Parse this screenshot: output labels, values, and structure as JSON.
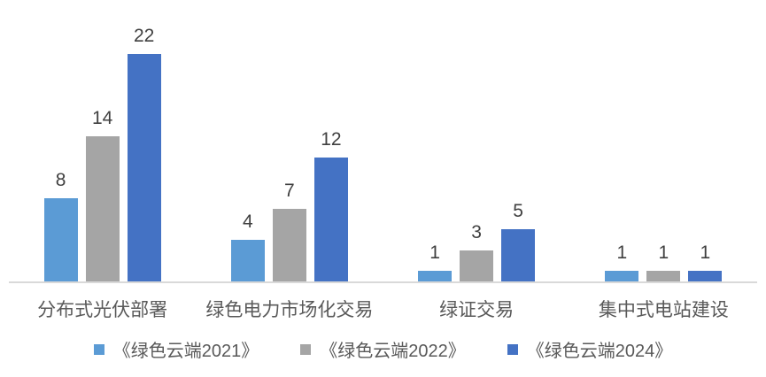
{
  "chart_data": {
    "type": "bar",
    "categories": [
      "分布式光伏部署",
      "绿色电力市场化交易",
      "绿证交易",
      "集中式电站建设"
    ],
    "series": [
      {
        "name": "《绿色云端2021》",
        "color": "#5B9BD5",
        "values": [
          8,
          4,
          1,
          1
        ]
      },
      {
        "name": "《绿色云端2022》",
        "color": "#A5A5A5",
        "values": [
          14,
          7,
          3,
          1
        ]
      },
      {
        "name": "《绿色云端2024》",
        "color": "#4472C4",
        "values": [
          22,
          12,
          5,
          1
        ]
      }
    ],
    "title": "",
    "xlabel": "",
    "ylabel": "",
    "ylim": [
      0,
      24
    ],
    "grid": false,
    "legend_position": "bottom",
    "data_labels": true
  },
  "colors": {
    "background": "#FFFFFF",
    "axis_line": "#D9D9D9",
    "value_label": "#404040",
    "category_label": "#595959",
    "legend_text": "#595959"
  }
}
